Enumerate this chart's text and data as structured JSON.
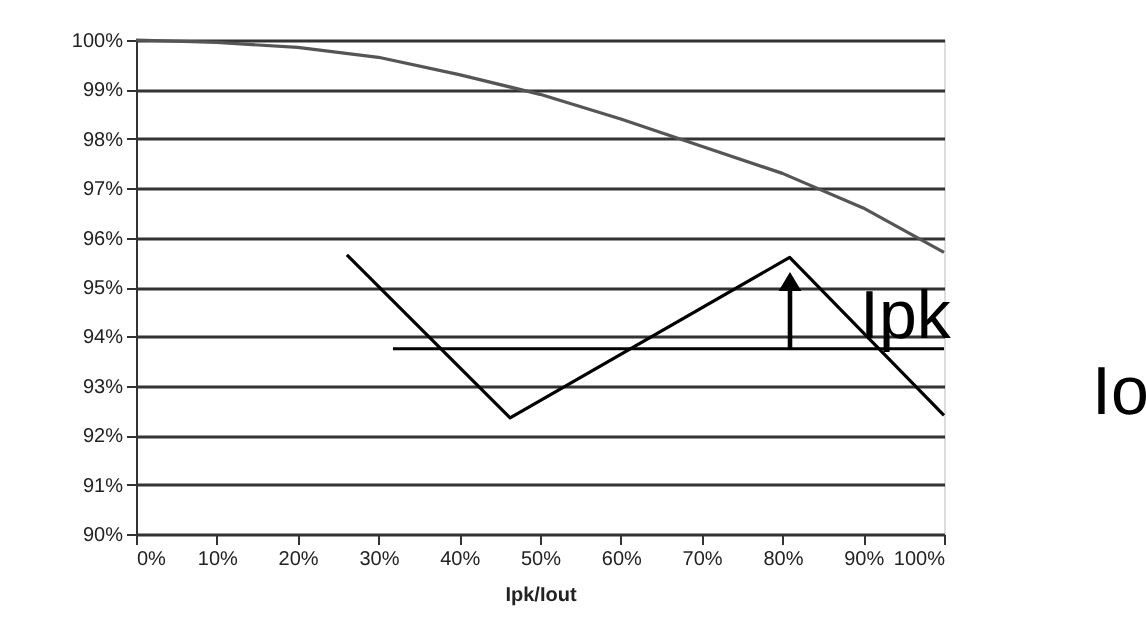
{
  "chart_data": {
    "type": "line",
    "xlabel": "Ipk/Iout",
    "xlim": [
      0,
      100
    ],
    "ylim": [
      90,
      100
    ],
    "xticks": [
      {
        "value": 0,
        "label": "0%"
      },
      {
        "value": 10,
        "label": "10%"
      },
      {
        "value": 20,
        "label": "20%"
      },
      {
        "value": 30,
        "label": "30%"
      },
      {
        "value": 40,
        "label": "40%"
      },
      {
        "value": 50,
        "label": "50%"
      },
      {
        "value": 60,
        "label": "60%"
      },
      {
        "value": 70,
        "label": "70%"
      },
      {
        "value": 80,
        "label": "80%"
      },
      {
        "value": 90,
        "label": "90%"
      },
      {
        "value": 100,
        "label": "100%"
      }
    ],
    "yticks": [
      {
        "value": 90,
        "label": "90%"
      },
      {
        "value": 91,
        "label": "91%"
      },
      {
        "value": 92,
        "label": "92%"
      },
      {
        "value": 93,
        "label": "93%"
      },
      {
        "value": 94,
        "label": "94%"
      },
      {
        "value": 95,
        "label": "95%"
      },
      {
        "value": 96,
        "label": "96%"
      },
      {
        "value": 97,
        "label": "97%"
      },
      {
        "value": 98,
        "label": "98%"
      },
      {
        "value": 99,
        "label": "99%"
      },
      {
        "value": 100,
        "label": "100%"
      }
    ],
    "grid": "y",
    "series": [
      {
        "color": "#555555",
        "x": [
          0,
          10,
          20,
          30,
          40,
          50,
          60,
          70,
          80,
          90,
          100
        ],
        "values": [
          100,
          99.95,
          99.85,
          99.65,
          99.3,
          98.9,
          98.4,
          97.85,
          97.3,
          96.6,
          95.7
        ]
      },
      {
        "color": "#000000",
        "x": [
          26.1,
          46.3,
          80.9,
          100
        ],
        "values": [
          95.65,
          92.35,
          95.6,
          92.4
        ]
      },
      {
        "color": "#000000",
        "x": [
          31.8,
          100
        ],
        "values": [
          93.75,
          93.75
        ]
      }
    ],
    "line_style": "solid",
    "annotations": [
      "Ipk",
      "Io"
    ]
  }
}
